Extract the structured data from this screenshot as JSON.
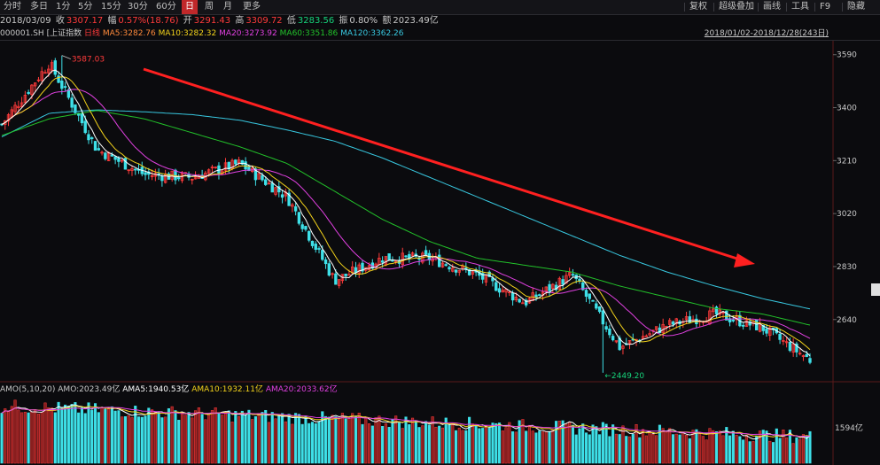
{
  "toolbar": {
    "periods": [
      "分时",
      "多日",
      "1分",
      "5分",
      "15分",
      "30分",
      "60分",
      "日",
      "周",
      "月",
      "更多"
    ],
    "active_period": "日",
    "right_items": [
      "复权",
      "超级叠加",
      "画线",
      "工具",
      "F9",
      "隐藏"
    ]
  },
  "quote": {
    "date": "2018/03/09",
    "close_label": "收",
    "close": "3307.17",
    "change_label": "幅",
    "change": "0.57%(18.76)",
    "open_label": "开",
    "open": "3291.43",
    "high_label": "高",
    "high": "3309.72",
    "low_label": "低",
    "low": "3283.56",
    "amp_label": "振",
    "amp": "0.80%",
    "amount_label": "额",
    "amount": "2023.49亿"
  },
  "ma_line": {
    "code": "000001.SH",
    "name": "[上证指数",
    "mode": "日线",
    "ma5": "MA5:3282.76",
    "ma10": "MA10:3282.32",
    "ma20": "MA20:3273.92",
    "ma60": "MA60:3351.86",
    "ma120": "MA120:3362.26"
  },
  "range": "2018/01/02-2018/12/28(243日)",
  "amo_line": {
    "label": "AMO(5,10,20)",
    "amo": "AMO:2023.49亿",
    "ama5": "AMA5:1940.53亿",
    "ama10": "AMA10:1932.11亿",
    "ama20": "AMA20:2033.62亿"
  },
  "colors": {
    "up": "#ff3b3b",
    "down": "#3ee0e8",
    "ma5": "#ffffff",
    "ma10": "#f2d21b",
    "ma20": "#e040e0",
    "ma60": "#22c22a",
    "ma120": "#38c8e0",
    "arrow": "#ff2020"
  },
  "chart_data": {
    "type": "candlestick",
    "ylim": [
      2420,
      3640
    ],
    "yticks": [
      3590,
      3400,
      3210,
      3020,
      2830,
      2640
    ],
    "high_annotation": "3587.03",
    "low_annotation": "2449.20",
    "volume_tick": "1594亿",
    "trend_arrow": "downward trend",
    "ma120_approx": [
      3295,
      3380,
      3392,
      3385,
      3375,
      3355,
      3320,
      3280,
      3220,
      3150,
      3080,
      3010,
      2940,
      2870,
      2810,
      2760,
      2715,
      2678
    ],
    "ma60_approx": [
      3300,
      3360,
      3390,
      3360,
      3310,
      3260,
      3200,
      3100,
      3000,
      2920,
      2860,
      2835,
      2810,
      2760,
      2720,
      2680,
      2660,
      2620
    ],
    "ma20_approx": [
      3390,
      3490,
      3350,
      3290,
      3250,
      3180,
      3130,
      2950,
      2800,
      2860,
      2840,
      2800,
      2720,
      2640,
      2620,
      2650,
      2640,
      2590
    ],
    "close_approx": [
      3340,
      3560,
      3250,
      3160,
      3150,
      3200,
      3080,
      2780,
      2860,
      2860,
      2800,
      2700,
      2800,
      2540,
      2620,
      2660,
      2610,
      2495
    ]
  }
}
